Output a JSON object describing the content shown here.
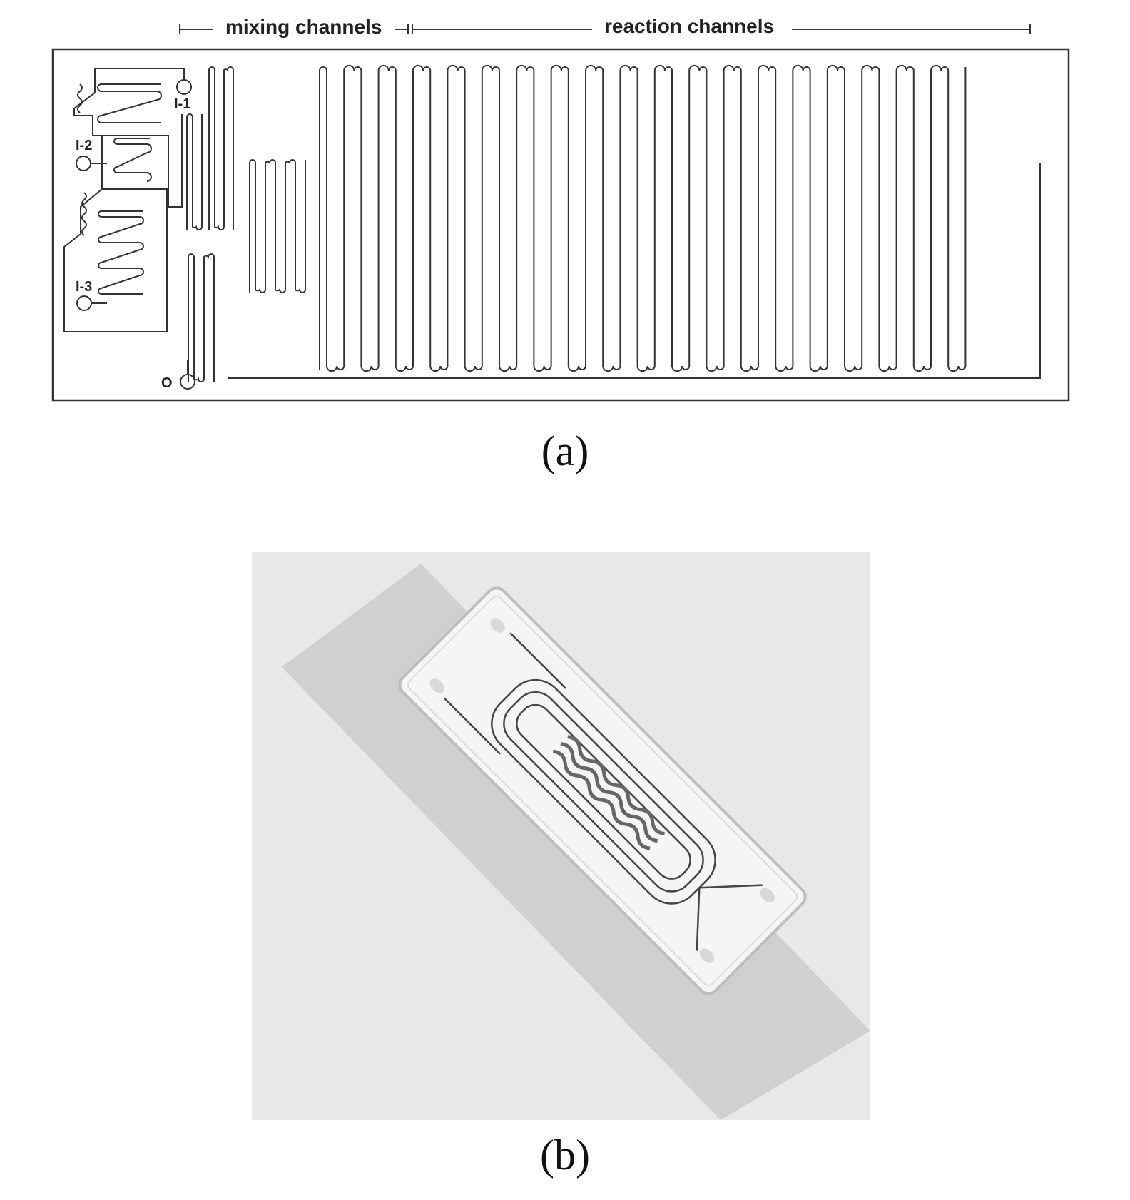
{
  "panel_a": {
    "labels": {
      "mixing": "mixing channels",
      "reaction": "reaction channels",
      "inlet1": "I-1",
      "inlet2": "I-2",
      "inlet3": "I-3",
      "outlet": "O"
    },
    "caption": "(a)"
  },
  "panel_b": {
    "caption": "(b)"
  },
  "colors": {
    "line": "#333333",
    "photo_bg": "#e6e6e6",
    "chip": "#f4f4f4"
  }
}
